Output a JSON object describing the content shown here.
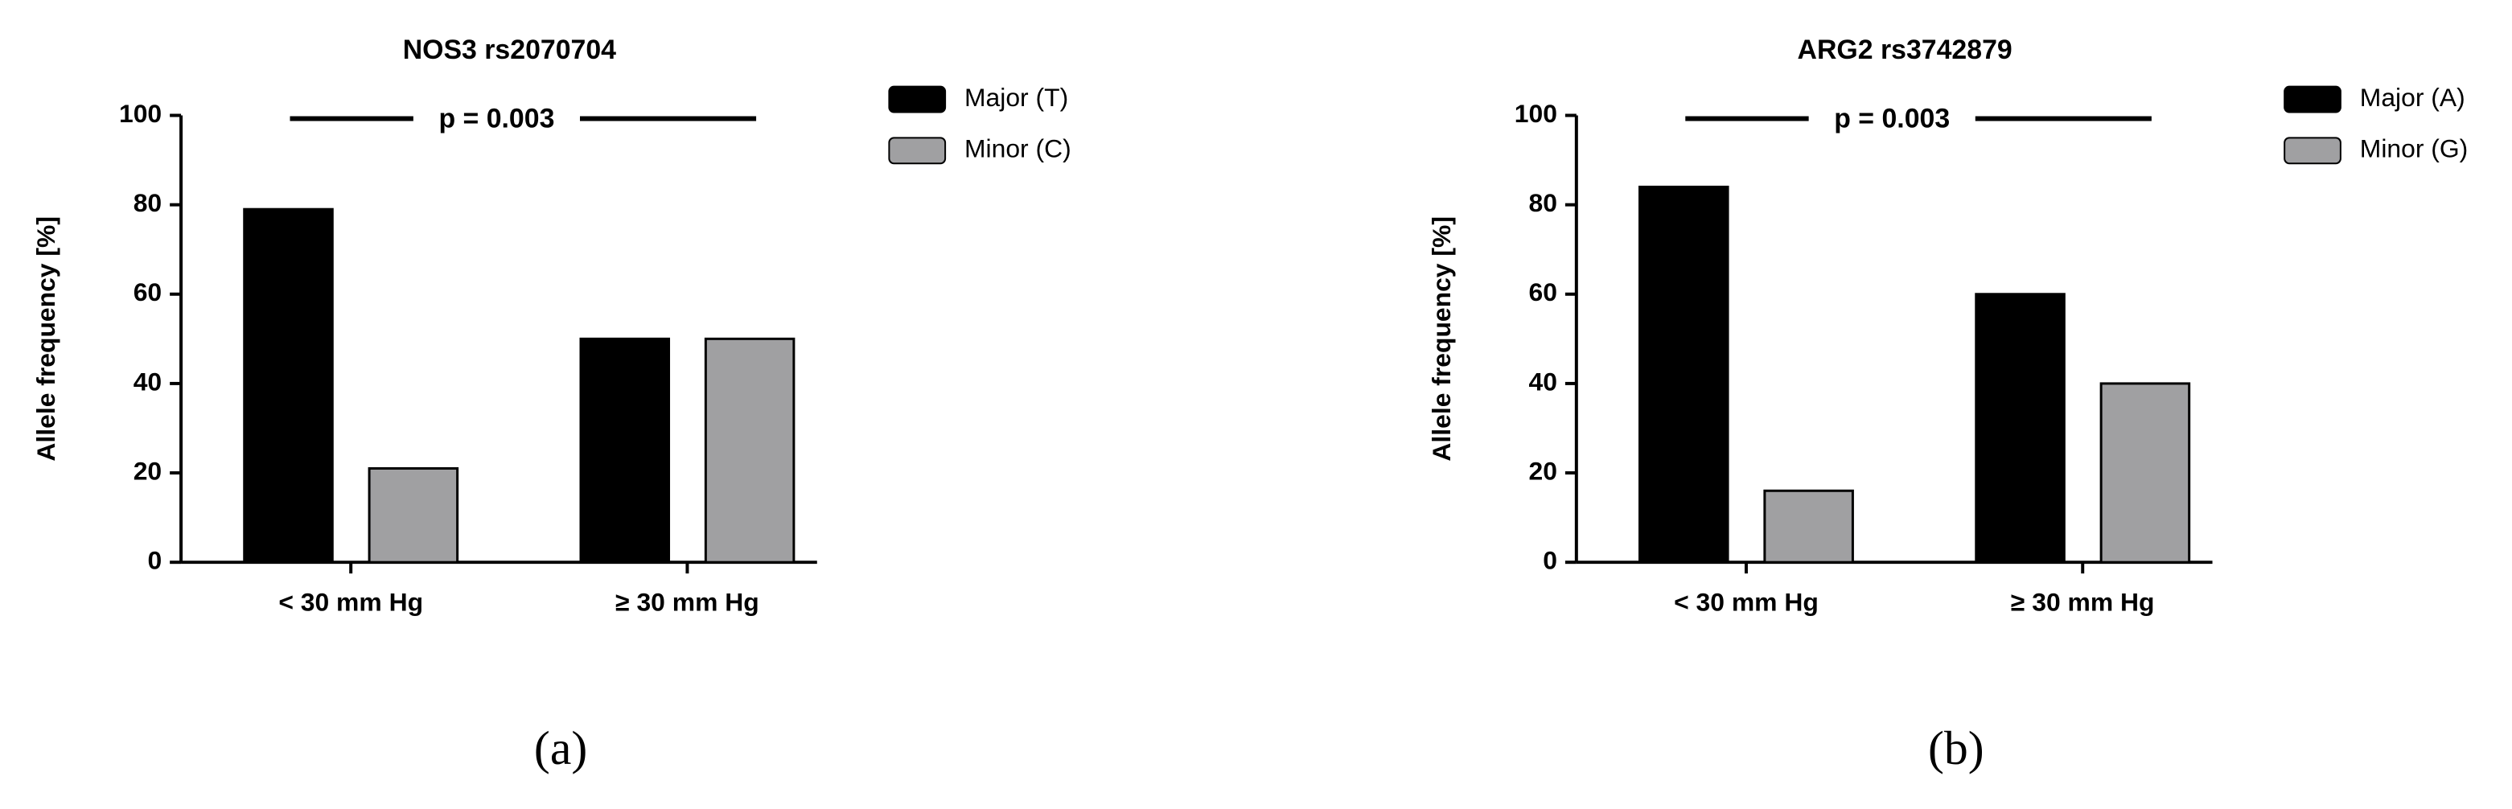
{
  "chart_data": [
    {
      "type": "bar",
      "title": "NOS3 rs2070704",
      "y_label": "Allele frequency [%]",
      "annotation": "p = 0.003",
      "panel_label": "(a)",
      "categories": [
        "< 30 mm Hg",
        "≥ 30 mm Hg"
      ],
      "series": [
        {
          "name": "Major (T)",
          "color": "#000000",
          "values": [
            79,
            50
          ]
        },
        {
          "name": "Minor (C)",
          "color": "#a0a0a2",
          "values": [
            21,
            50
          ]
        }
      ],
      "ylim": [
        0,
        100
      ],
      "yticks": [
        0,
        20,
        40,
        60,
        80,
        100
      ]
    },
    {
      "type": "bar",
      "title": "ARG2 rs3742879",
      "y_label": "Allele frequency [%]",
      "annotation": "p = 0.003",
      "panel_label": "(b)",
      "categories": [
        "< 30 mm Hg",
        "≥ 30 mm Hg"
      ],
      "series": [
        {
          "name": "Major (A)",
          "color": "#000000",
          "values": [
            84,
            60
          ]
        },
        {
          "name": "Minor (G)",
          "color": "#a0a0a2",
          "values": [
            16,
            40
          ]
        }
      ],
      "ylim": [
        0,
        100
      ],
      "yticks": [
        0,
        20,
        40,
        60,
        80,
        100
      ]
    }
  ]
}
